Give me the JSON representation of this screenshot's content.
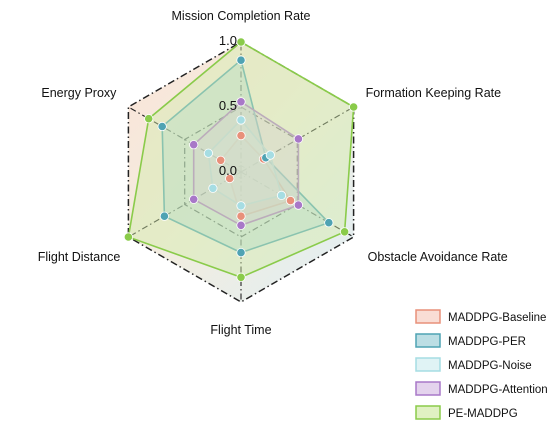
{
  "chart_data": {
    "type": "radar",
    "axes": [
      "Mission Completion Rate",
      "Formation Keeping Rate",
      "Obstacle Avoidance Rate",
      "Flight Time",
      "Flight Distance",
      "Energy Proxy"
    ],
    "rlim": [
      0,
      1
    ],
    "tick_labels": [
      "0.0",
      "0.5",
      "1.0"
    ],
    "grid": true,
    "legend_position": "bottom-right",
    "series": [
      {
        "name": "MADDPG-Baseline",
        "values": [
          0.28,
          0.2,
          0.44,
          0.34,
          0.1,
          0.18
        ],
        "color": "#e8907a",
        "fill": "#f6cfc3"
      },
      {
        "name": "MADDPG-PER",
        "values": [
          0.86,
          0.22,
          0.78,
          0.62,
          0.68,
          0.7
        ],
        "color": "#4fa3b3",
        "fill": "#9fd0d8"
      },
      {
        "name": "MADDPG-Noise",
        "values": [
          0.4,
          0.26,
          0.36,
          0.26,
          0.25,
          0.29
        ],
        "color": "#a6dde3",
        "fill": "#d3eef1"
      },
      {
        "name": "MADDPG-Attention",
        "values": [
          0.54,
          0.51,
          0.51,
          0.41,
          0.42,
          0.42
        ],
        "color": "#a878c8",
        "fill": "#d8c0e6"
      },
      {
        "name": "PE-MADDPG",
        "values": [
          1.0,
          1.0,
          0.92,
          0.81,
          1.0,
          0.82
        ],
        "color": "#8acb4a",
        "fill": "#d3ebaa"
      }
    ]
  }
}
